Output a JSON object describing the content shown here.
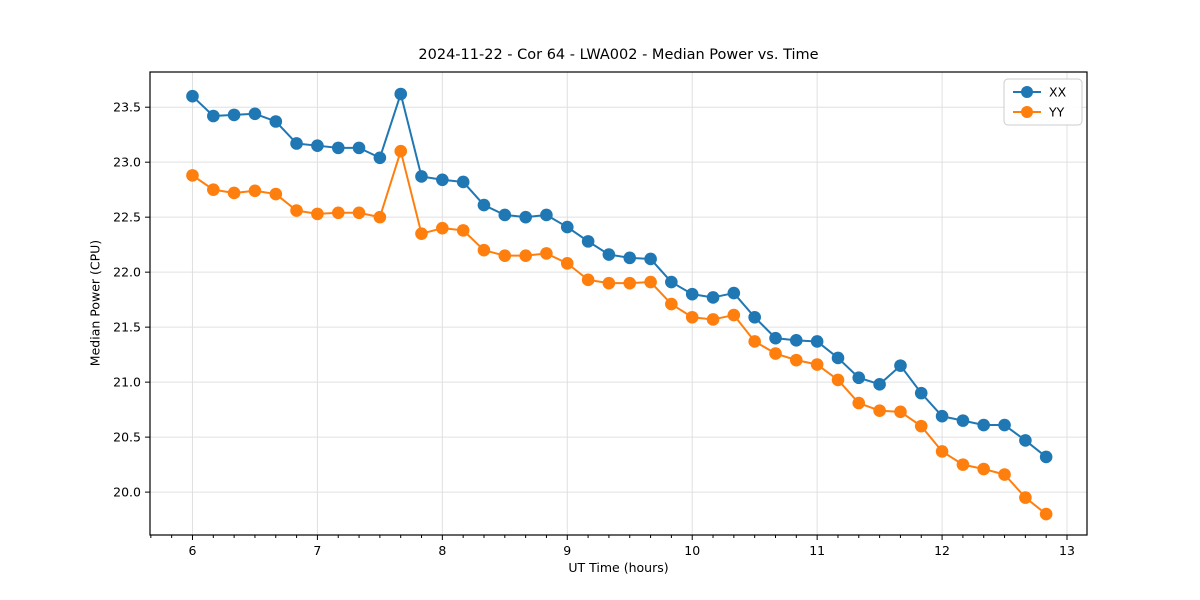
{
  "chart_data": {
    "type": "line",
    "title": "2024-11-22 - Cor 64 - LWA002 - Median Power vs. Time",
    "xlabel": "UT Time (hours)",
    "ylabel": "Median Power (CPU)",
    "xlim": [
      5.66,
      13.16
    ],
    "ylim": [
      19.61,
      23.82
    ],
    "xticks": [
      6,
      7,
      8,
      9,
      10,
      11,
      12,
      13
    ],
    "yticks": [
      20.0,
      20.5,
      21.0,
      21.5,
      22.0,
      22.5,
      23.0,
      23.5
    ],
    "x_minor_tick_interval_hours": 0.1667,
    "grid": true,
    "legend": {
      "position": "upper-right",
      "entries": [
        "XX",
        "YY"
      ]
    },
    "x": [
      6.0,
      6.167,
      6.333,
      6.5,
      6.667,
      6.833,
      7.0,
      7.167,
      7.333,
      7.5,
      7.667,
      7.833,
      8.0,
      8.167,
      8.333,
      8.5,
      8.667,
      8.833,
      9.0,
      9.167,
      9.333,
      9.5,
      9.667,
      9.833,
      10.0,
      10.167,
      10.333,
      10.5,
      10.667,
      10.833,
      11.0,
      11.167,
      11.333,
      11.5,
      11.667,
      11.833,
      12.0,
      12.167,
      12.333,
      12.5,
      12.667,
      12.833
    ],
    "series": [
      {
        "name": "XX",
        "color": "#1f77b4",
        "values": [
          23.6,
          23.42,
          23.43,
          23.44,
          23.37,
          23.17,
          23.15,
          23.13,
          23.13,
          23.04,
          23.62,
          22.87,
          22.84,
          22.82,
          22.61,
          22.52,
          22.5,
          22.52,
          22.41,
          22.28,
          22.16,
          22.13,
          22.12,
          21.91,
          21.8,
          21.77,
          21.81,
          21.59,
          21.4,
          21.38,
          21.37,
          21.22,
          21.04,
          20.98,
          21.15,
          20.9,
          20.69,
          20.65,
          20.61,
          20.61,
          20.47,
          20.32
        ]
      },
      {
        "name": "YY",
        "color": "#ff7f0e",
        "values": [
          22.88,
          22.75,
          22.72,
          22.74,
          22.71,
          22.56,
          22.53,
          22.54,
          22.54,
          22.5,
          23.1,
          22.35,
          22.4,
          22.38,
          22.2,
          22.15,
          22.15,
          22.17,
          22.08,
          21.93,
          21.9,
          21.9,
          21.91,
          21.71,
          21.59,
          21.57,
          21.61,
          21.37,
          21.26,
          21.2,
          21.16,
          21.02,
          20.81,
          20.74,
          20.73,
          20.6,
          20.37,
          20.25,
          20.21,
          20.16,
          19.95,
          19.8
        ]
      }
    ],
    "colors": {
      "grid": "#e0e0e0",
      "spine": "#000000",
      "text": "#000000",
      "background": "#ffffff"
    }
  }
}
